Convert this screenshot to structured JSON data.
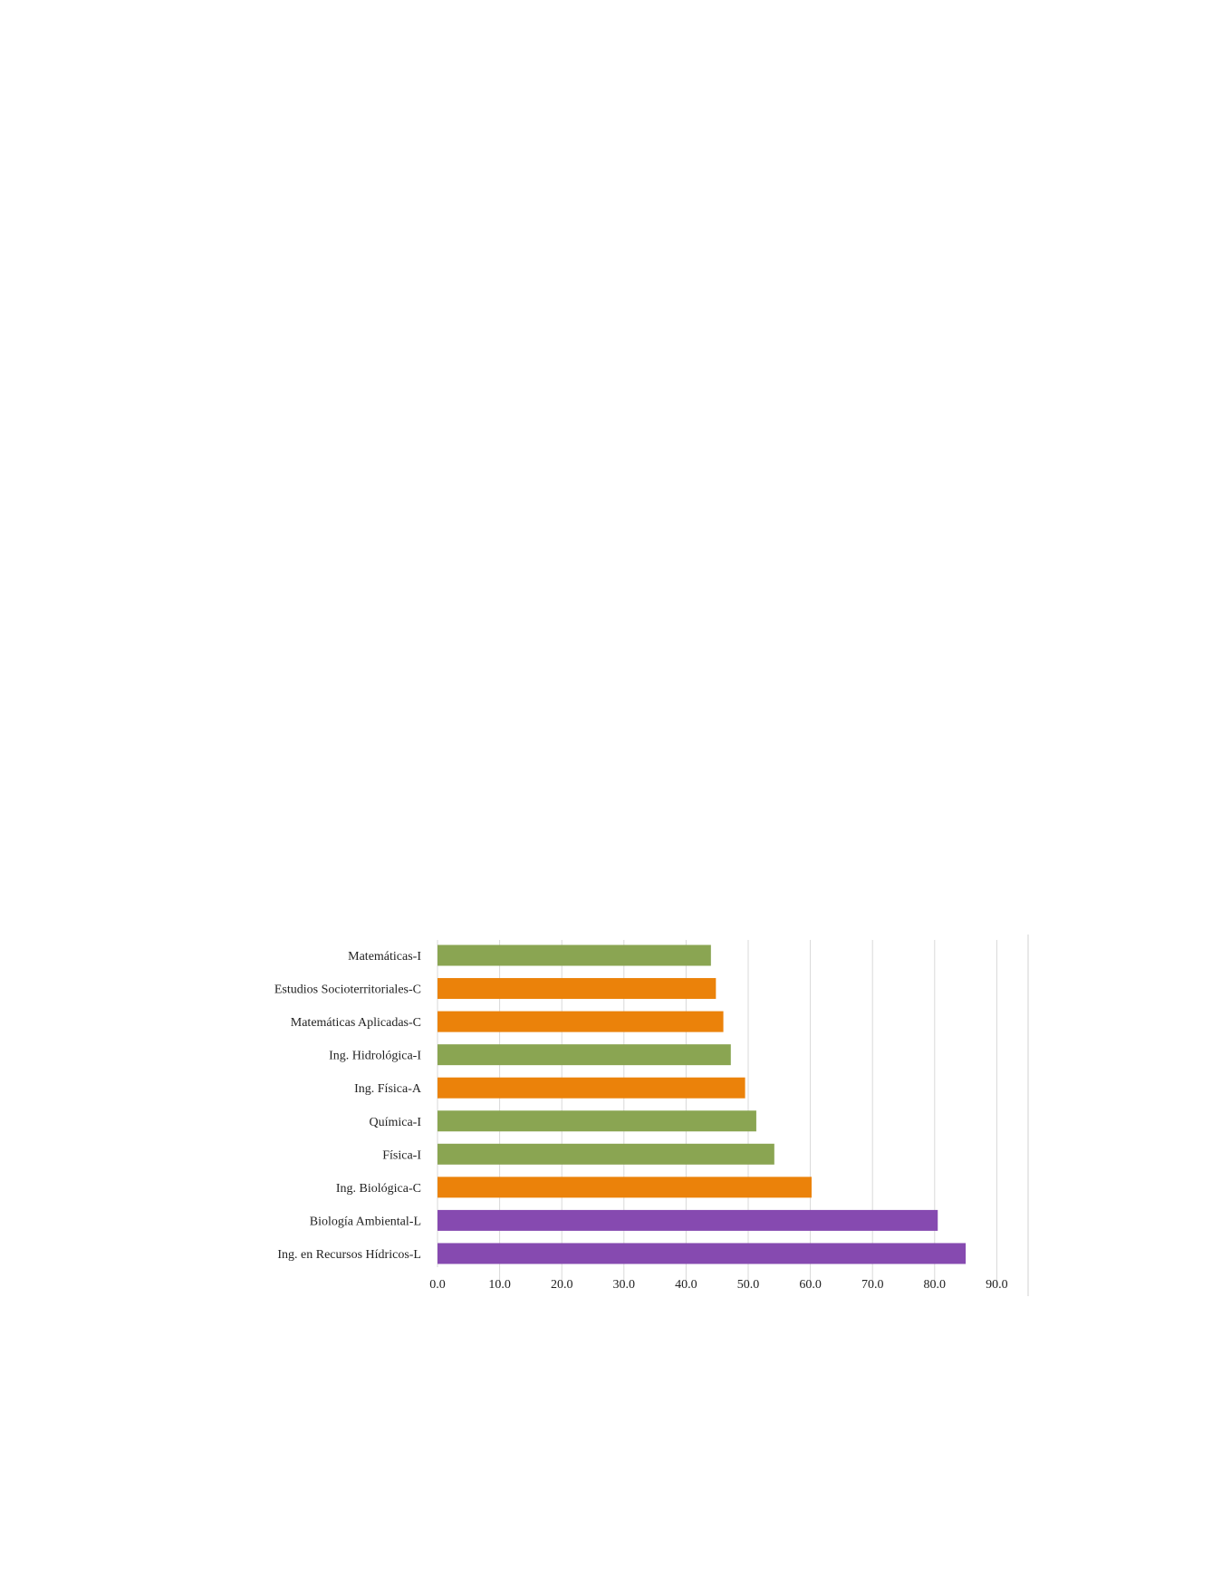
{
  "chart_data": {
    "type": "bar",
    "orientation": "horizontal",
    "title": "",
    "xlabel": "",
    "ylabel": "",
    "categories": [
      "Matemáticas-I",
      "Estudios Socioterritoriales-C",
      "Matemáticas Aplicadas-C",
      "Ing. Hidrológica-I",
      "Ing. Física-A",
      "Química-I",
      "Física-I",
      "Ing. Biológica-C",
      "Biología Ambiental-L",
      "Ing. en Recursos Hídricos-L"
    ],
    "values": [
      44.0,
      44.8,
      46.0,
      47.2,
      49.5,
      51.3,
      54.2,
      60.2,
      80.5,
      85.0
    ],
    "bar_colors": [
      "#8aa552",
      "#eb820a",
      "#eb820a",
      "#8aa552",
      "#eb820a",
      "#8aa552",
      "#8aa552",
      "#eb820a",
      "#864ab0",
      "#864ab0"
    ],
    "x_ticks": [
      "0.0",
      "10.0",
      "20.0",
      "30.0",
      "40.0",
      "50.0",
      "60.0",
      "70.0",
      "80.0",
      "90.0"
    ],
    "xlim": [
      0,
      96
    ],
    "grid": "vertical",
    "legend": "none"
  }
}
